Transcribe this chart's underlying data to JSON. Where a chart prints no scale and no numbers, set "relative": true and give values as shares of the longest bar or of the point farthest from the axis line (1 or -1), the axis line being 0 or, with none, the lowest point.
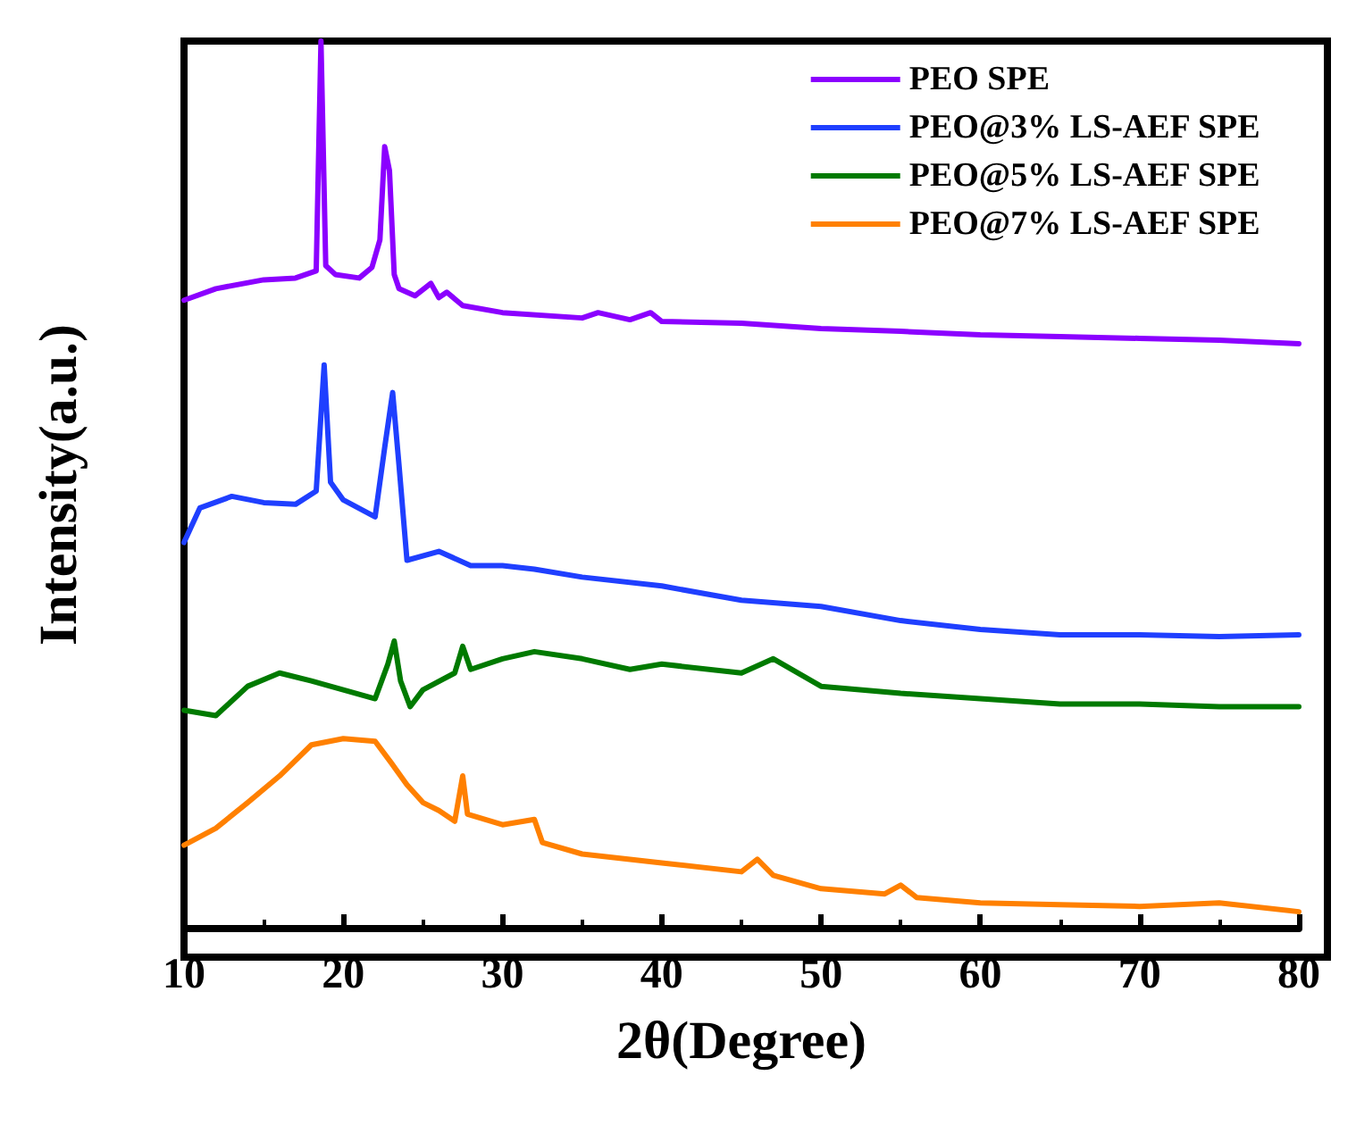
{
  "chart_data": {
    "type": "line",
    "xlabel": "2θ(Degree)",
    "ylabel": "Intensity(a.u.)",
    "relative": true,
    "xlim": [
      10,
      80
    ],
    "xticks": [
      10,
      20,
      30,
      40,
      50,
      60,
      70,
      80
    ],
    "legend": "top right",
    "grid": false,
    "marker": "none",
    "line_style": "solid",
    "series": [
      {
        "name": "PEO SPE",
        "color": "#8b00ff",
        "x": [
          10,
          12,
          15,
          17,
          18.3,
          18.6,
          18.9,
          19.5,
          21,
          21.8,
          22.3,
          22.6,
          22.9,
          23.2,
          23.5,
          24.5,
          25.5,
          26,
          26.5,
          27.5,
          30,
          35,
          36,
          38,
          39.3,
          40,
          45,
          50,
          55,
          60,
          65,
          70,
          75,
          80
        ],
        "values": [
          0.708,
          0.721,
          0.731,
          0.733,
          0.741,
          1,
          0.747,
          0.737,
          0.733,
          0.745,
          0.776,
          0.881,
          0.854,
          0.737,
          0.721,
          0.713,
          0.727,
          0.711,
          0.717,
          0.702,
          0.694,
          0.688,
          0.694,
          0.686,
          0.694,
          0.684,
          0.682,
          0.676,
          0.673,
          0.669,
          0.667,
          0.665,
          0.663,
          0.659
        ]
      },
      {
        "name": "PEO@3% LS-AEF SPE",
        "color": "#1f3fff",
        "x": [
          10,
          11,
          13,
          15,
          17,
          18.3,
          18.8,
          19.2,
          20,
          22,
          22.6,
          23.1,
          23.5,
          24,
          26,
          28,
          30,
          32,
          35,
          40,
          45,
          50,
          55,
          60,
          65,
          70,
          75,
          80
        ],
        "values": [
          0.435,
          0.474,
          0.487,
          0.48,
          0.478,
          0.493,
          0.635,
          0.503,
          0.483,
          0.464,
          0.542,
          0.604,
          0.522,
          0.415,
          0.425,
          0.409,
          0.409,
          0.405,
          0.396,
          0.386,
          0.37,
          0.363,
          0.347,
          0.337,
          0.331,
          0.331,
          0.329,
          0.331
        ]
      },
      {
        "name": "PEO@5% LS-AEF SPE",
        "color": "#007a00",
        "x": [
          10,
          12,
          14,
          16,
          18,
          20,
          22,
          22.8,
          23.2,
          23.6,
          24.2,
          25,
          27,
          27.5,
          28,
          30,
          32,
          35,
          38,
          40,
          45,
          47,
          50,
          55,
          60,
          65,
          70,
          75,
          80
        ],
        "values": [
          0.246,
          0.24,
          0.273,
          0.288,
          0.279,
          0.269,
          0.259,
          0.298,
          0.324,
          0.279,
          0.25,
          0.269,
          0.288,
          0.318,
          0.292,
          0.304,
          0.312,
          0.304,
          0.292,
          0.298,
          0.288,
          0.304,
          0.273,
          0.265,
          0.259,
          0.253,
          0.253,
          0.25,
          0.25
        ]
      },
      {
        "name": "PEO@7% LS-AEF SPE",
        "color": "#ff8000",
        "x": [
          10,
          12,
          14,
          16,
          18,
          20,
          22,
          23,
          24,
          25,
          26,
          27,
          27.5,
          27.8,
          30,
          32,
          32.5,
          35,
          40,
          45,
          46,
          47,
          50,
          54,
          55,
          56,
          60,
          65,
          70,
          75,
          80
        ],
        "values": [
          0.094,
          0.113,
          0.142,
          0.172,
          0.207,
          0.214,
          0.211,
          0.187,
          0.162,
          0.142,
          0.133,
          0.121,
          0.172,
          0.129,
          0.117,
          0.123,
          0.097,
          0.084,
          0.074,
          0.064,
          0.078,
          0.06,
          0.045,
          0.039,
          0.049,
          0.035,
          0.029,
          0.027,
          0.025,
          0.029,
          0.019
        ]
      }
    ]
  }
}
